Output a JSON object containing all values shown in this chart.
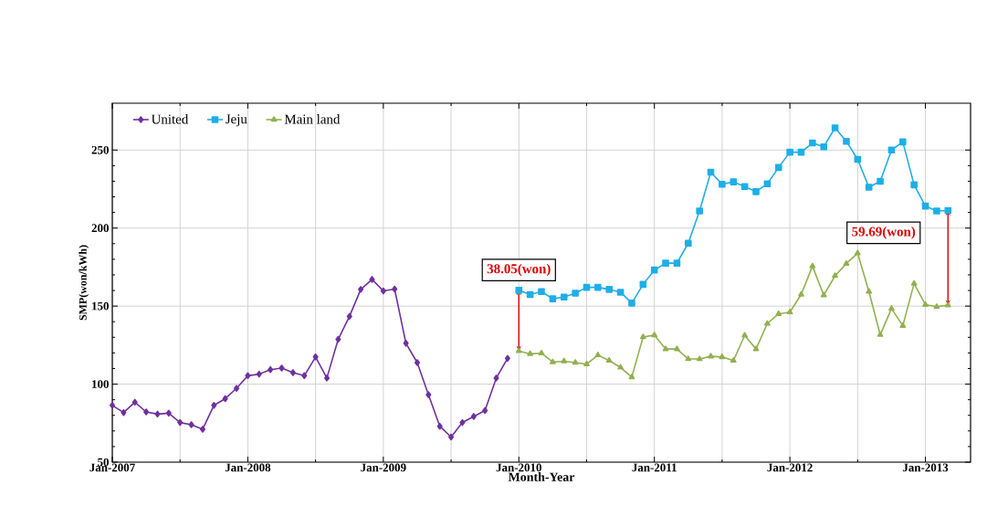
{
  "chart_data": {
    "type": "line",
    "xlabel": "Month-Year",
    "ylabel": "SMP(won/kWh)",
    "xlim": [
      "2007-01",
      "2013-05"
    ],
    "xticks": [
      {
        "value": "2007-01",
        "label": "Jan-2007"
      },
      {
        "value": "2008-01",
        "label": "Jan-2008"
      },
      {
        "value": "2009-01",
        "label": "Jan-2009"
      },
      {
        "value": "2010-01",
        "label": "Jan-2010"
      },
      {
        "value": "2011-01",
        "label": "Jan-2011"
      },
      {
        "value": "2012-01",
        "label": "Jan-2012"
      },
      {
        "value": "2013-01",
        "label": "Jan-2013"
      }
    ],
    "ylim": [
      50,
      280
    ],
    "yticks": [
      50,
      100,
      150,
      200,
      250
    ],
    "grid": true,
    "legend": "top left",
    "series": [
      {
        "name": "United",
        "color": "#7030a0",
        "marker": "diamond",
        "x": [
          "2007-01",
          "2007-02",
          "2007-03",
          "2007-04",
          "2007-05",
          "2007-06",
          "2007-07",
          "2007-08",
          "2007-09",
          "2007-10",
          "2007-11",
          "2007-12",
          "2008-01",
          "2008-02",
          "2008-03",
          "2008-04",
          "2008-05",
          "2008-06",
          "2008-07",
          "2008-08",
          "2008-09",
          "2008-10",
          "2008-11",
          "2008-12",
          "2009-01",
          "2009-02",
          "2009-03",
          "2009-04",
          "2009-05",
          "2009-06",
          "2009-07",
          "2009-08",
          "2009-09",
          "2009-10",
          "2009-11",
          "2009-12"
        ],
        "values": [
          86.4,
          81.8,
          88.4,
          82.2,
          80.8,
          81.4,
          75.4,
          74,
          71.1,
          86.4,
          90.7,
          97.3,
          105.4,
          106.4,
          109.3,
          110.3,
          107.4,
          105.4,
          117.4,
          103.9,
          128.7,
          143.4,
          160.7,
          167.1,
          159.7,
          160.9,
          126.2,
          113.8,
          93.2,
          73,
          66.1,
          75.4,
          79.3,
          83.1,
          103.9,
          116.5
        ]
      },
      {
        "name": "Jeju",
        "color": "#1eaee8",
        "marker": "square",
        "x": [
          "2010-01",
          "2010-02",
          "2010-03",
          "2010-04",
          "2010-05",
          "2010-06",
          "2010-07",
          "2010-08",
          "2010-09",
          "2010-10",
          "2010-11",
          "2010-12",
          "2011-01",
          "2011-02",
          "2011-03",
          "2011-04",
          "2011-05",
          "2011-06",
          "2011-07",
          "2011-08",
          "2011-09",
          "2011-10",
          "2011-11",
          "2011-12",
          "2012-01",
          "2012-02",
          "2012-03",
          "2012-04",
          "2012-05",
          "2012-06",
          "2012-07",
          "2012-08",
          "2012-09",
          "2012-10",
          "2012-11",
          "2012-12",
          "2013-01",
          "2013-02",
          "2013-03"
        ],
        "values": [
          160.1,
          157.4,
          159.3,
          154.7,
          155.8,
          158.3,
          162,
          162,
          160.7,
          158.9,
          151.9,
          163.9,
          173.1,
          177.5,
          177.5,
          190.3,
          210.9,
          235.8,
          228.1,
          229.6,
          226.6,
          223.3,
          228.3,
          238.8,
          248.6,
          248.6,
          254.5,
          252.1,
          264.2,
          255.6,
          244,
          226.2,
          230,
          250,
          255.2,
          227.7,
          214.1,
          210.9,
          211.2
        ]
      },
      {
        "name": "Main land",
        "color": "#92b050",
        "marker": "triangle",
        "x": [
          "2010-01",
          "2010-02",
          "2010-03",
          "2010-04",
          "2010-05",
          "2010-06",
          "2010-07",
          "2010-08",
          "2010-09",
          "2010-10",
          "2010-11",
          "2010-12",
          "2011-01",
          "2011-02",
          "2011-03",
          "2011-04",
          "2011-05",
          "2011-06",
          "2011-07",
          "2011-08",
          "2011-09",
          "2011-10",
          "2011-11",
          "2011-12",
          "2012-01",
          "2012-02",
          "2012-03",
          "2012-04",
          "2012-05",
          "2012-06",
          "2012-07",
          "2012-08",
          "2012-09",
          "2012-10",
          "2012-11",
          "2012-12",
          "2013-01",
          "2013-02",
          "2013-03"
        ],
        "values": [
          121.3,
          119.4,
          119.8,
          114.1,
          114.7,
          113.8,
          112.8,
          118.6,
          115.1,
          110.7,
          104.5,
          130.2,
          131.4,
          122.5,
          122.5,
          116.1,
          116.1,
          117.8,
          117.4,
          115.1,
          131.2,
          122.5,
          138.8,
          145,
          146.1,
          157.4,
          175.6,
          157,
          169.4,
          177.2,
          183.9,
          159.3,
          131.6,
          148.4,
          137.4,
          164.5,
          150.9,
          149.6,
          150.6
        ]
      }
    ],
    "annotations": [
      {
        "text": "38.05(won)",
        "x": "2010-01",
        "y": 160.1
      },
      {
        "text": "59.69(won)",
        "x": "2013-03",
        "y": 211.2
      }
    ]
  }
}
